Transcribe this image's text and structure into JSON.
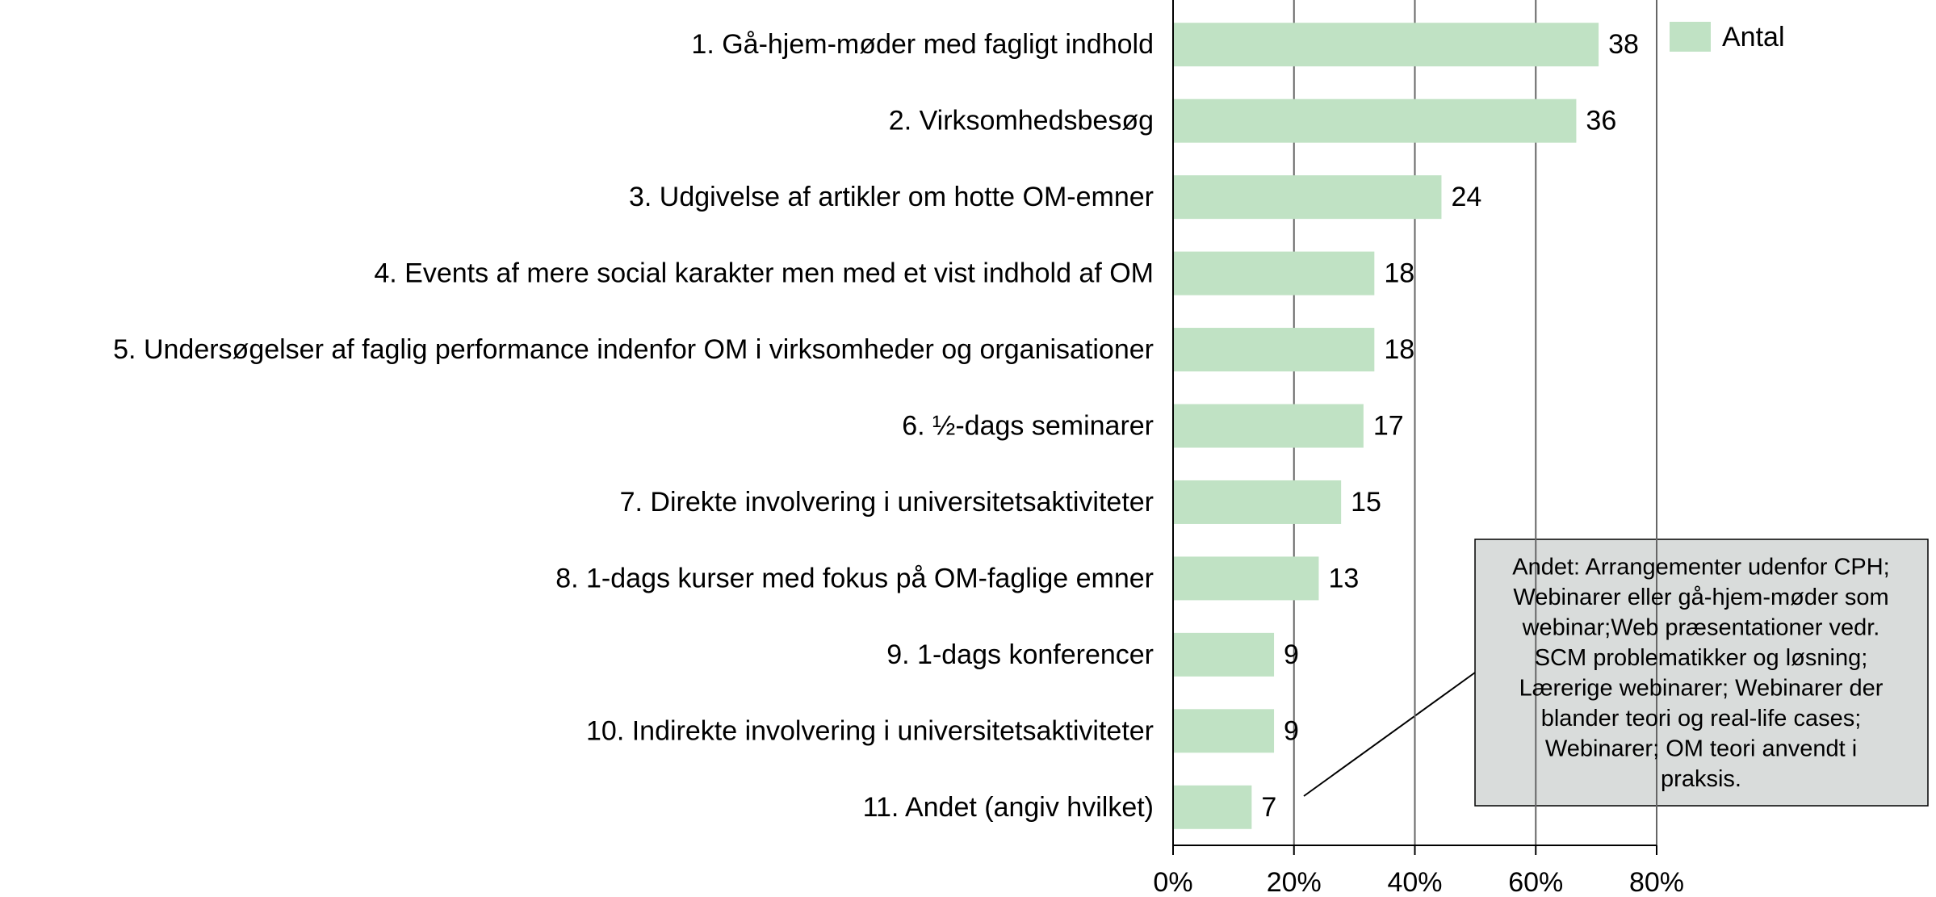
{
  "chart_data": {
    "type": "hbar",
    "categories": [
      "1. Gå-hjem-møder med fagligt indhold",
      "2. Virksomhedsbesøg",
      "3. Udgivelse af artikler om hotte OM-emner",
      "4. Events af mere social karakter men med et vist indhold af OM",
      "5. Undersøgelser af faglig performance indenfor OM i virksomheder og organisationer",
      "6. ½-dags seminarer",
      "7. Direkte involvering i universitetsaktiviteter",
      "8. 1-dags kurser med fokus på OM-faglige emner",
      "9. 1-dags konferencer",
      "10. Indirekte involvering i universitetsaktiviteter",
      "11. Andet (angiv hvilket)"
    ],
    "series": [
      {
        "name": "Antal",
        "color": "#c0e2c4",
        "values": [
          70.4,
          66.7,
          44.4,
          33.3,
          33.3,
          31.5,
          27.8,
          24.1,
          16.7,
          16.7,
          13.0
        ],
        "counts": [
          38,
          36,
          24,
          18,
          18,
          17,
          15,
          13,
          9,
          9,
          7
        ]
      }
    ],
    "xlim": [
      0,
      80
    ],
    "xticks": [
      {
        "value": 0,
        "label": "0%"
      },
      {
        "value": 20,
        "label": "20%"
      },
      {
        "value": 40,
        "label": "40%"
      },
      {
        "value": 60,
        "label": "60%"
      },
      {
        "value": 80,
        "label": "80%"
      }
    ],
    "grid": true,
    "legend": "top-right",
    "annotation": [
      "Andet: Arrangementer udenfor CPH;",
      "Webinarer eller gå-hjem-møder som",
      "webinar;Web præsentationer vedr.",
      "SCM problematikker og løsning;",
      "Lærerige webinarer; Webinarer der",
      "blander teori og real-life cases;",
      "Webinarer; OM teori anvendt i",
      "praksis."
    ]
  }
}
